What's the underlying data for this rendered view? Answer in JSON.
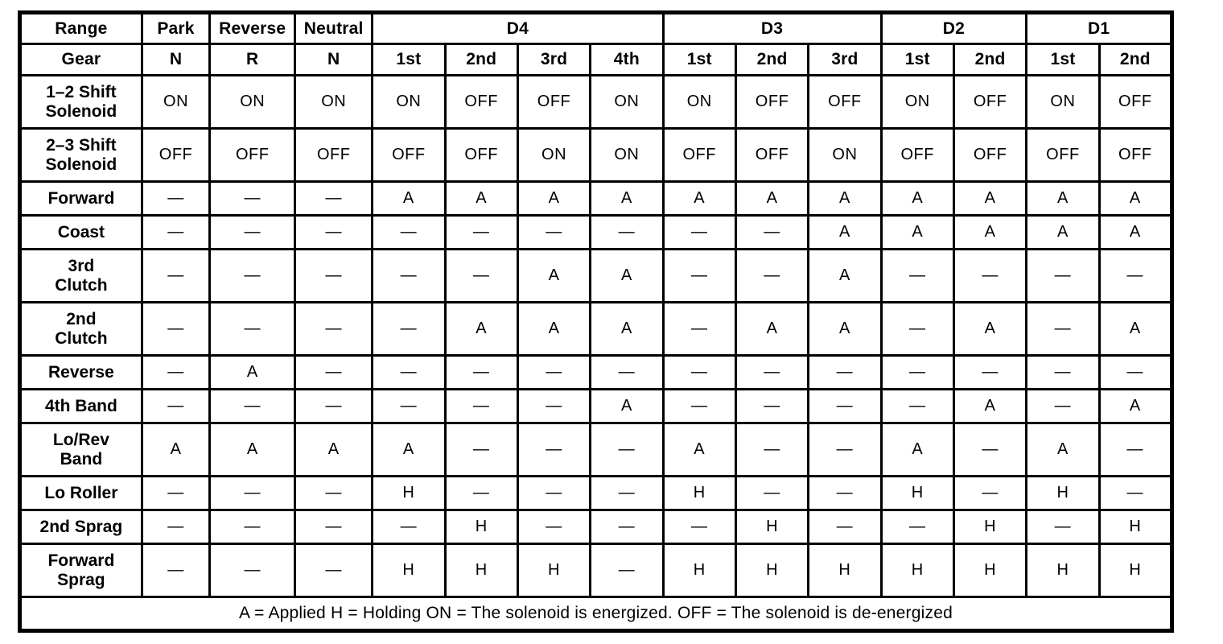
{
  "table": {
    "range_header": "Range",
    "gear_header": "Gear",
    "range_groups": [
      {
        "label": "Park",
        "span": 1
      },
      {
        "label": "Reverse",
        "span": 1
      },
      {
        "label": "Neutral",
        "span": 1
      },
      {
        "label": "D4",
        "span": 4
      },
      {
        "label": "D3",
        "span": 3
      },
      {
        "label": "D2",
        "span": 2
      },
      {
        "label": "D1",
        "span": 2
      }
    ],
    "gears": [
      "N",
      "R",
      "N",
      "1st",
      "2nd",
      "3rd",
      "4th",
      "1st",
      "2nd",
      "3rd",
      "1st",
      "2nd",
      "1st",
      "2nd"
    ],
    "rows": [
      {
        "label": "1–2 Shift\nSolenoid",
        "values": [
          "ON",
          "ON",
          "ON",
          "ON",
          "OFF",
          "OFF",
          "ON",
          "ON",
          "OFF",
          "OFF",
          "ON",
          "OFF",
          "ON",
          "OFF"
        ]
      },
      {
        "label": "2–3 Shift\nSolenoid",
        "values": [
          "OFF",
          "OFF",
          "OFF",
          "OFF",
          "OFF",
          "ON",
          "ON",
          "OFF",
          "OFF",
          "ON",
          "OFF",
          "OFF",
          "OFF",
          "OFF"
        ]
      },
      {
        "label": "Forward",
        "values": [
          "—",
          "—",
          "—",
          "A",
          "A",
          "A",
          "A",
          "A",
          "A",
          "A",
          "A",
          "A",
          "A",
          "A"
        ]
      },
      {
        "label": "Coast",
        "values": [
          "—",
          "—",
          "—",
          "—",
          "—",
          "—",
          "—",
          "—",
          "—",
          "A",
          "A",
          "A",
          "A",
          "A"
        ]
      },
      {
        "label": "3rd\nClutch",
        "values": [
          "—",
          "—",
          "—",
          "—",
          "—",
          "A",
          "A",
          "—",
          "—",
          "A",
          "—",
          "—",
          "—",
          "—"
        ]
      },
      {
        "label": "2nd\nClutch",
        "values": [
          "—",
          "—",
          "—",
          "—",
          "A",
          "A",
          "A",
          "—",
          "A",
          "A",
          "—",
          "A",
          "—",
          "A"
        ]
      },
      {
        "label": "Reverse",
        "values": [
          "—",
          "A",
          "—",
          "—",
          "—",
          "—",
          "—",
          "—",
          "—",
          "—",
          "—",
          "—",
          "—",
          "—"
        ]
      },
      {
        "label": "4th Band",
        "values": [
          "—",
          "—",
          "—",
          "—",
          "—",
          "—",
          "A",
          "—",
          "—",
          "—",
          "—",
          "A",
          "—",
          "A"
        ]
      },
      {
        "label": "Lo/Rev\nBand",
        "values": [
          "A",
          "A",
          "A",
          "A",
          "—",
          "—",
          "—",
          "A",
          "—",
          "—",
          "A",
          "—",
          "A",
          "—"
        ]
      },
      {
        "label": "Lo Roller",
        "values": [
          "—",
          "—",
          "—",
          "H",
          "—",
          "—",
          "—",
          "H",
          "—",
          "—",
          "H",
          "—",
          "H",
          "—"
        ]
      },
      {
        "label": "2nd Sprag",
        "values": [
          "—",
          "—",
          "—",
          "—",
          "H",
          "—",
          "—",
          "—",
          "H",
          "—",
          "—",
          "H",
          "—",
          "H"
        ]
      },
      {
        "label": "Forward\nSprag",
        "values": [
          "—",
          "—",
          "—",
          "H",
          "H",
          "H",
          "—",
          "H",
          "H",
          "H",
          "H",
          "H",
          "H",
          "H"
        ]
      }
    ],
    "legend": "A = Applied H = Holding ON = The solenoid is energized. OFF = The solenoid is de-energized"
  },
  "colors": {
    "ink": "#000000",
    "paper": "#ffffff"
  }
}
